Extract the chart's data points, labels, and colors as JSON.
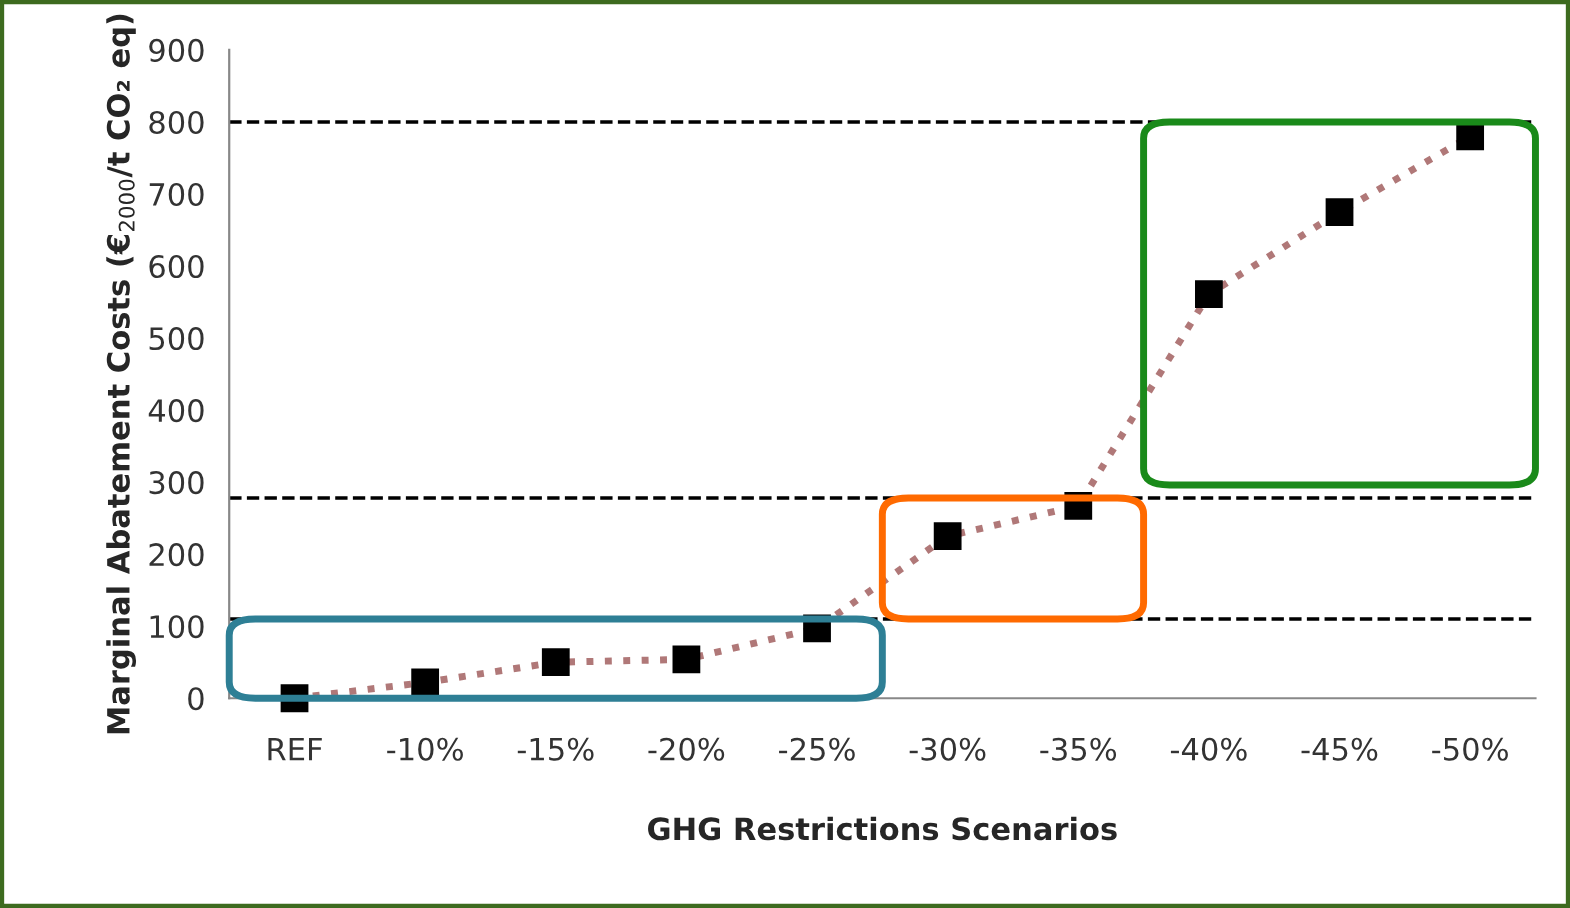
{
  "chart_data": {
    "type": "line",
    "xlabel": "GHG Restrictions Scenarios",
    "ylabel": "Marginal Abatement Costs (€$_{2000}$/t CO₂ eq)",
    "categories": [
      "REF",
      "-10%",
      "-15%",
      "-20%",
      "-25%",
      "-30%",
      "-35%",
      "-40%",
      "-45%",
      "-50%"
    ],
    "series": [
      {
        "color": "#000000",
        "values": [
          0,
          22,
          50,
          54,
          97,
          225,
          267,
          561,
          675,
          780
        ]
      }
    ],
    "marker": "square",
    "line_style": "dotted",
    "ylim": [
      0,
      900
    ],
    "yticks": [
      0,
      100,
      200,
      300,
      400,
      500,
      600,
      700,
      800,
      900
    ],
    "grid": false,
    "ref_lines": [
      {
        "axis": "y",
        "value": 800,
        "label": null,
        "color": "#000000",
        "line_style": "dashed"
      },
      {
        "axis": "y",
        "value": 278,
        "label": null,
        "color": "#000000",
        "line_style": "dashed"
      },
      {
        "axis": "y",
        "value": 110,
        "label": null,
        "color": "#000000",
        "line_style": "dashed"
      }
    ]
  }
}
